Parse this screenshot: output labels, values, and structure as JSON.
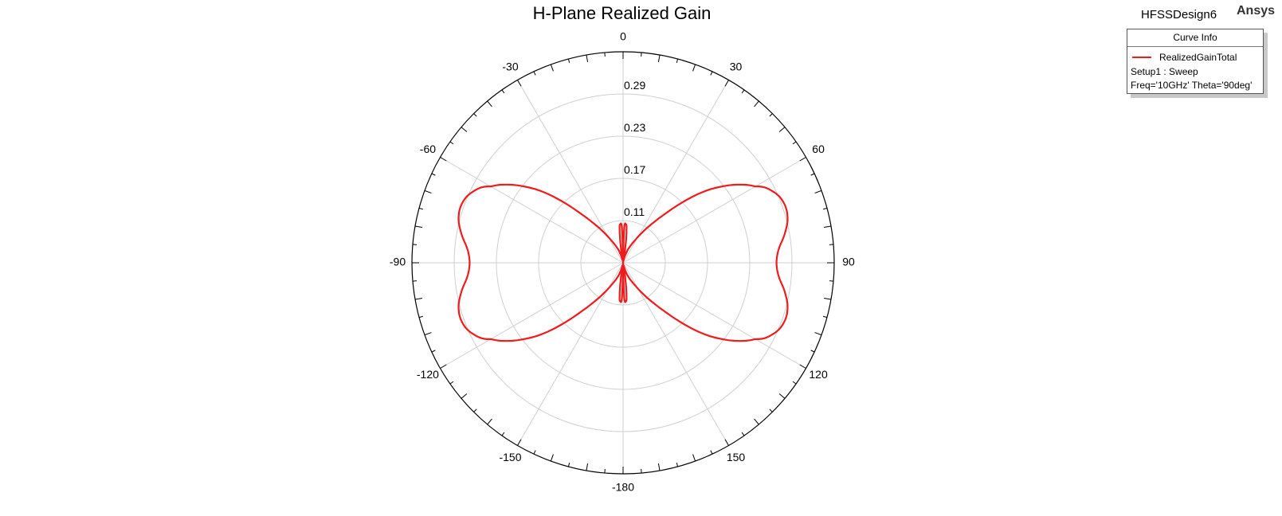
{
  "title": "H-Plane Realized Gain",
  "design_name": "HFSSDesign6",
  "brand": "Ansys",
  "legend": {
    "header": "Curve Info",
    "series_label": "RealizedGainTotal",
    "setup": "Setup1 : Sweep",
    "params": "Freq='10GHz' Theta='90deg'"
  },
  "colors": {
    "series": "#ee1c1c",
    "grid": "#cfcfcf",
    "axis": "#000000"
  },
  "chart_data": {
    "type": "line",
    "subtype": "polar",
    "title": "H-Plane Realized Gain",
    "angle_unit": "deg",
    "angle_zero": "top",
    "angle_direction": "clockwise",
    "angle_ticks": [
      0,
      30,
      60,
      90,
      120,
      150,
      -180,
      -150,
      -120,
      -90,
      -60,
      -30
    ],
    "radial_ticks": [
      "0.11",
      "0.17",
      "0.23",
      "0.29"
    ],
    "radial_range": [
      0.05,
      0.35
    ],
    "grid": true,
    "legend_position": "top-right",
    "series": [
      {
        "name": "RealizedGainTotal",
        "color": "#ee1c1c",
        "phi_deg": [
          0,
          2,
          4,
          6,
          10,
          15,
          20,
          30,
          40,
          50,
          60,
          65,
          70,
          75,
          80,
          85,
          90,
          95,
          100,
          105,
          110,
          115,
          120,
          130,
          140,
          150,
          160,
          170,
          174,
          176,
          178,
          180,
          182,
          184,
          186,
          190,
          200,
          210,
          220,
          230,
          240,
          245,
          250,
          255,
          260,
          265,
          270,
          275,
          280,
          285,
          290,
          295,
          300,
          310,
          320,
          330,
          340,
          350,
          354,
          356,
          358
        ],
        "values": [
          0.05,
          0.1,
          0.105,
          0.097,
          0.055,
          0.06,
          0.07,
          0.093,
          0.138,
          0.213,
          0.267,
          0.287,
          0.294,
          0.292,
          0.283,
          0.272,
          0.268,
          0.272,
          0.283,
          0.292,
          0.294,
          0.287,
          0.267,
          0.213,
          0.138,
          0.093,
          0.07,
          0.055,
          0.097,
          0.105,
          0.1,
          0.05,
          0.1,
          0.105,
          0.097,
          0.055,
          0.07,
          0.093,
          0.138,
          0.213,
          0.267,
          0.287,
          0.294,
          0.292,
          0.283,
          0.272,
          0.268,
          0.272,
          0.283,
          0.292,
          0.294,
          0.287,
          0.267,
          0.213,
          0.138,
          0.093,
          0.07,
          0.055,
          0.097,
          0.105,
          0.1
        ]
      }
    ]
  }
}
